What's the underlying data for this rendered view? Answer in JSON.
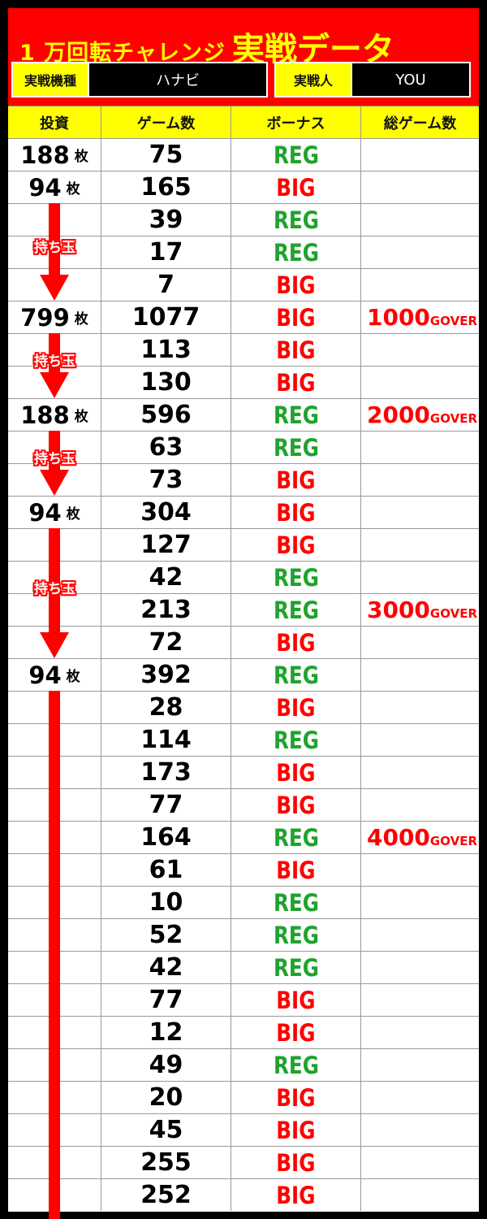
{
  "header": {
    "title_prefix": "1 万回転チャレンジ",
    "title_main": "実戦データ",
    "machine_label": "実戦機種",
    "machine_value": "ハナビ",
    "player_label": "実戦人",
    "player_value": "YOU"
  },
  "columns": [
    "投資",
    "ゲーム数",
    "ボーナス",
    "総ゲーム数"
  ],
  "colors": {
    "red": "#ff0000",
    "yellow": "#ffff00",
    "reg_green": "#1fa32e",
    "big_red": "#ff0000"
  },
  "unit": "枚",
  "total_suffix": "GOVER",
  "arrow_label": "持ち玉",
  "rows": [
    {
      "inv": "188",
      "games": "75",
      "bonus": "REG",
      "total": ""
    },
    {
      "inv": "94",
      "games": "165",
      "bonus": "BIG",
      "total": ""
    },
    {
      "inv": "",
      "games": "39",
      "bonus": "REG",
      "total": ""
    },
    {
      "inv": "",
      "games": "17",
      "bonus": "REG",
      "total": ""
    },
    {
      "inv": "",
      "games": "7",
      "bonus": "BIG",
      "total": ""
    },
    {
      "inv": "799",
      "games": "1077",
      "bonus": "BIG",
      "total": "1000"
    },
    {
      "inv": "",
      "games": "113",
      "bonus": "BIG",
      "total": ""
    },
    {
      "inv": "",
      "games": "130",
      "bonus": "BIG",
      "total": ""
    },
    {
      "inv": "188",
      "games": "596",
      "bonus": "REG",
      "total": "2000"
    },
    {
      "inv": "",
      "games": "63",
      "bonus": "REG",
      "total": ""
    },
    {
      "inv": "",
      "games": "73",
      "bonus": "BIG",
      "total": ""
    },
    {
      "inv": "94",
      "games": "304",
      "bonus": "BIG",
      "total": ""
    },
    {
      "inv": "",
      "games": "127",
      "bonus": "BIG",
      "total": ""
    },
    {
      "inv": "",
      "games": "42",
      "bonus": "REG",
      "total": ""
    },
    {
      "inv": "",
      "games": "213",
      "bonus": "REG",
      "total": "3000"
    },
    {
      "inv": "",
      "games": "72",
      "bonus": "BIG",
      "total": ""
    },
    {
      "inv": "94",
      "games": "392",
      "bonus": "REG",
      "total": ""
    },
    {
      "inv": "",
      "games": "28",
      "bonus": "BIG",
      "total": ""
    },
    {
      "inv": "",
      "games": "114",
      "bonus": "REG",
      "total": ""
    },
    {
      "inv": "",
      "games": "173",
      "bonus": "BIG",
      "total": ""
    },
    {
      "inv": "",
      "games": "77",
      "bonus": "BIG",
      "total": ""
    },
    {
      "inv": "",
      "games": "164",
      "bonus": "REG",
      "total": "4000"
    },
    {
      "inv": "",
      "games": "61",
      "bonus": "BIG",
      "total": ""
    },
    {
      "inv": "",
      "games": "10",
      "bonus": "REG",
      "total": ""
    },
    {
      "inv": "",
      "games": "52",
      "bonus": "REG",
      "total": ""
    },
    {
      "inv": "",
      "games": "42",
      "bonus": "REG",
      "total": ""
    },
    {
      "inv": "",
      "games": "77",
      "bonus": "BIG",
      "total": ""
    },
    {
      "inv": "",
      "games": "12",
      "bonus": "BIG",
      "total": ""
    },
    {
      "inv": "",
      "games": "49",
      "bonus": "REG",
      "total": ""
    },
    {
      "inv": "",
      "games": "20",
      "bonus": "BIG",
      "total": ""
    },
    {
      "inv": "",
      "games": "45",
      "bonus": "BIG",
      "total": ""
    },
    {
      "inv": "",
      "games": "255",
      "bonus": "BIG",
      "total": ""
    },
    {
      "inv": "",
      "games": "252",
      "bonus": "BIG",
      "total": ""
    }
  ],
  "arrows": [
    {
      "from": 2,
      "to": 4,
      "label": true,
      "head": true
    },
    {
      "from": 6,
      "to": 7,
      "label": true,
      "head": true
    },
    {
      "from": 9,
      "to": 10,
      "label": true,
      "head": true
    },
    {
      "from": 12,
      "to": 15,
      "label": true,
      "head": true
    },
    {
      "from": 17,
      "to": 32,
      "label": false,
      "head": false
    }
  ]
}
